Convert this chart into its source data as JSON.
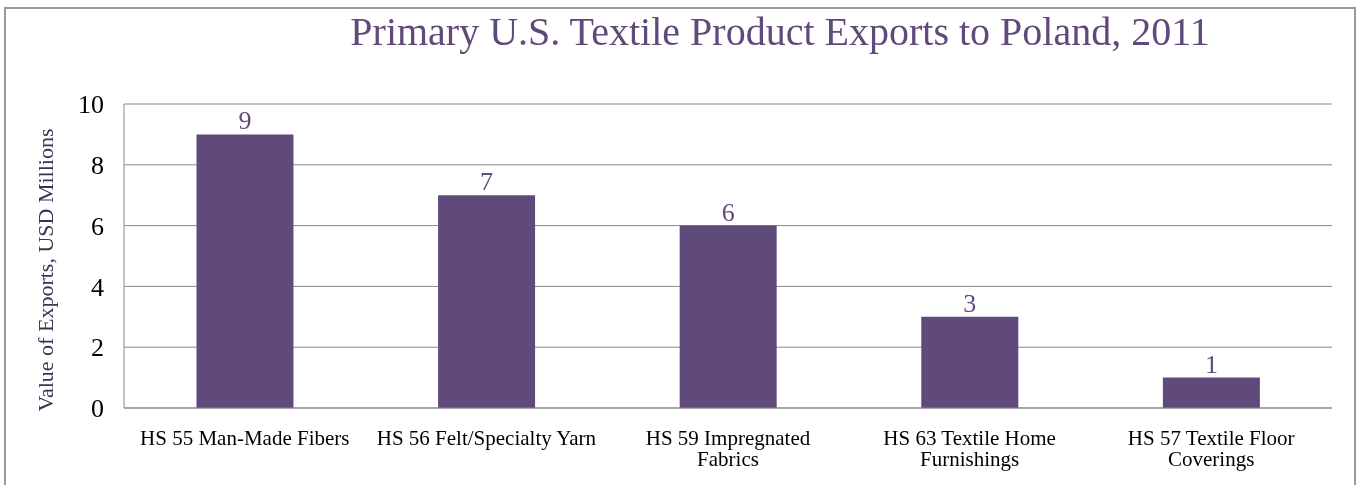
{
  "chart_data": {
    "type": "bar",
    "title": "Primary U.S. Textile Product Exports to Poland, 2011",
    "ylabel": "Value of Exports, USD Millions",
    "categories": [
      "HS 55 Man-Made Fibers",
      "HS 56 Felt/Specialty Yarn",
      "HS 59 Impregnated Fabrics",
      "HS 63 Textile Home Furnishings",
      "HS 57 Textile Floor Coverings"
    ],
    "values": [
      9,
      7,
      6,
      3,
      1
    ],
    "color": "#604a7b",
    "ylim": [
      0,
      10
    ],
    "yticks": [
      0,
      2,
      4,
      6,
      8,
      10
    ],
    "grid": "y",
    "data_labels": true
  }
}
